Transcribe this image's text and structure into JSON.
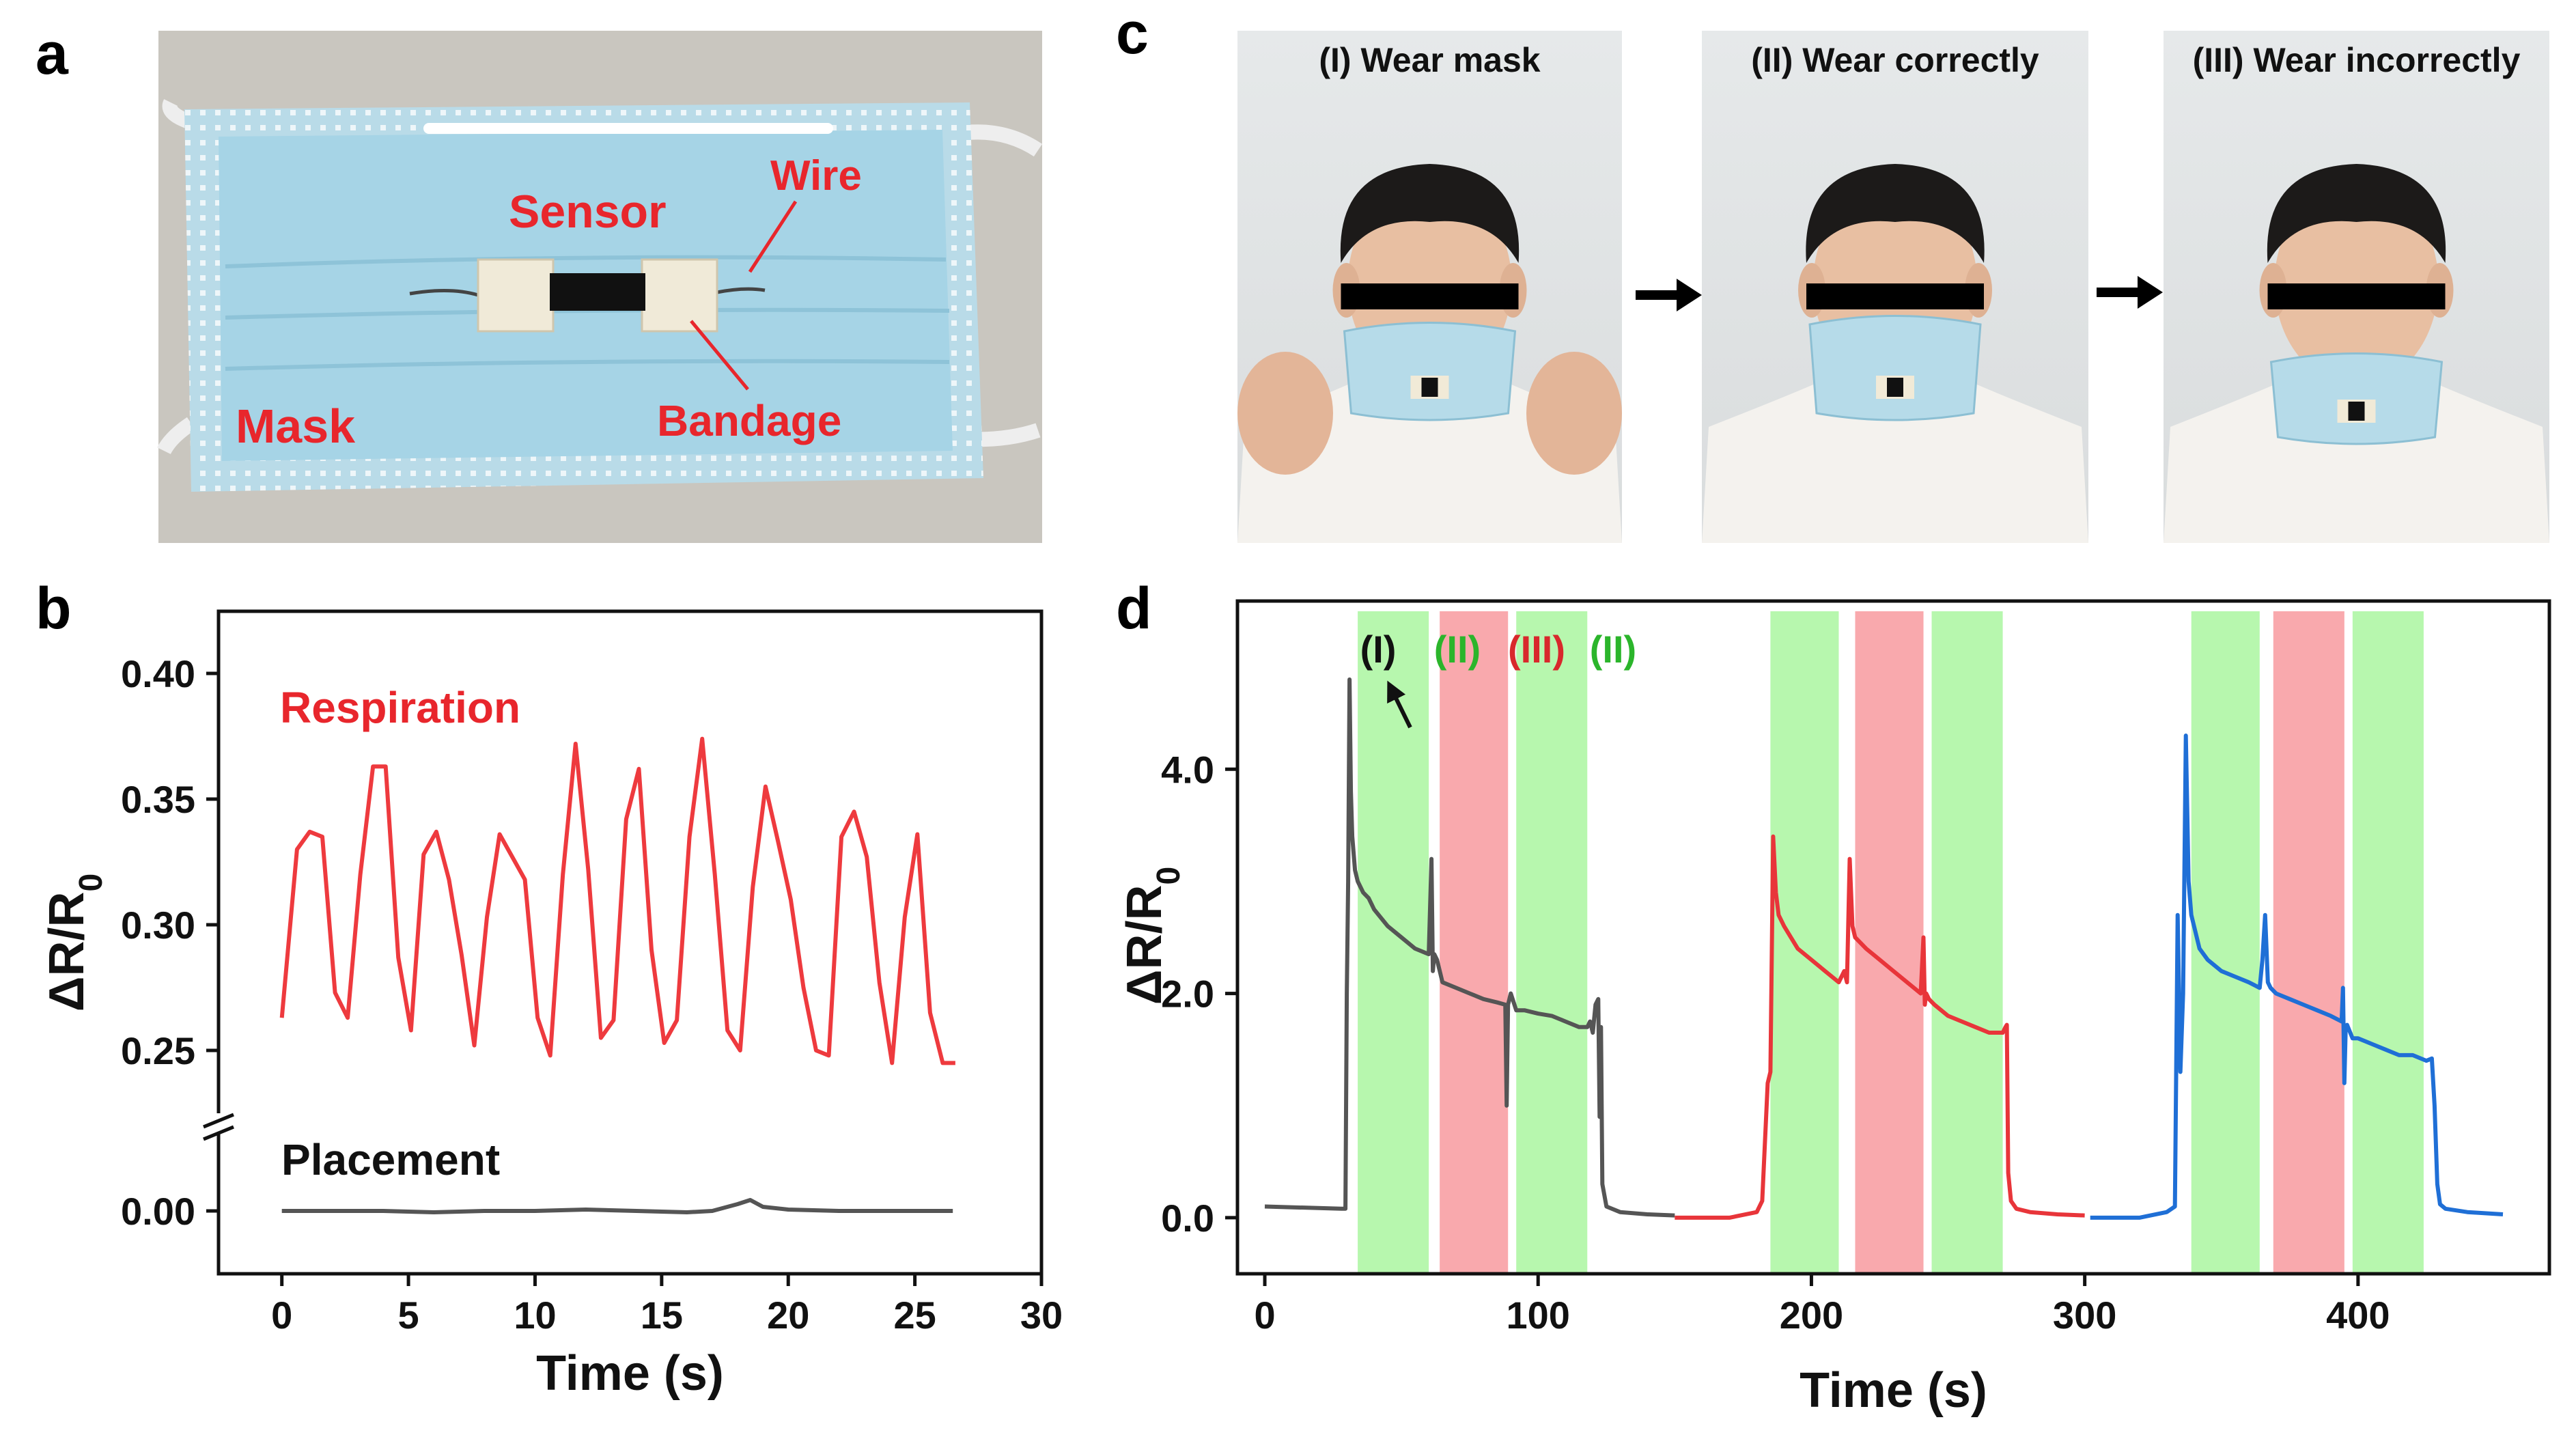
{
  "panels": {
    "a": {
      "letter": "a",
      "labels": {
        "sensor": "Sensor",
        "wire": "Wire",
        "mask": "Mask",
        "bandage": "Bandage"
      }
    },
    "c": {
      "letter": "c",
      "photos": [
        {
          "title": "(I) Wear mask"
        },
        {
          "title": "(II) Wear correctly"
        },
        {
          "title": "(III) Wear incorrectly"
        }
      ]
    }
  },
  "chart_data": [
    {
      "panel": "b",
      "type": "line",
      "xlabel": "Time (s)",
      "ylabel": "ΔR/R",
      "ylabel_subscript": "0",
      "xlim": [
        -2.5,
        30
      ],
      "xticks": [
        0,
        5,
        10,
        15,
        20,
        25,
        30
      ],
      "yticks_upper": [
        "0.40",
        "0.35",
        "0.30",
        "0.25"
      ],
      "ytick_lower": "0.00",
      "ylim_upper": [
        0.23,
        0.42
      ],
      "broken_axis": true,
      "series": [
        {
          "name": "Respiration",
          "color": "#ee3a3e",
          "x": [
            0,
            0.6,
            1.1,
            1.6,
            2.1,
            2.6,
            3.1,
            3.6,
            4.1,
            4.6,
            5.1,
            5.6,
            6.1,
            6.6,
            7.1,
            7.6,
            8.1,
            8.6,
            9.1,
            9.6,
            10.1,
            10.6,
            11.1,
            11.6,
            12.1,
            12.6,
            13.1,
            13.6,
            14.1,
            14.6,
            15.1,
            15.6,
            16.1,
            16.6,
            17.1,
            17.6,
            18.1,
            18.6,
            19.1,
            19.6,
            20.1,
            20.6,
            21.1,
            21.6,
            22.1,
            22.6,
            23.1,
            23.6,
            24.1,
            24.6,
            25.1,
            25.6,
            26.1,
            26.6
          ],
          "y": [
            0.263,
            0.33,
            0.337,
            0.335,
            0.273,
            0.263,
            0.32,
            0.363,
            0.363,
            0.287,
            0.258,
            0.328,
            0.337,
            0.318,
            0.288,
            0.252,
            0.303,
            0.336,
            0.327,
            0.318,
            0.263,
            0.248,
            0.32,
            0.372,
            0.322,
            0.255,
            0.262,
            0.342,
            0.362,
            0.29,
            0.253,
            0.262,
            0.335,
            0.374,
            0.32,
            0.258,
            0.25,
            0.315,
            0.355,
            0.333,
            0.31,
            0.275,
            0.25,
            0.248,
            0.335,
            0.345,
            0.327,
            0.277,
            0.245,
            0.303,
            0.336,
            0.265,
            0.245,
            0.245
          ]
        },
        {
          "name": "Placement",
          "color": "#555555",
          "x": [
            0,
            2,
            4,
            6,
            8,
            10,
            12,
            14,
            16,
            17,
            18,
            18.5,
            19,
            20,
            22,
            24,
            26,
            26.5
          ],
          "y": [
            0.0,
            0.0,
            0.0,
            -0.001,
            0.0,
            0.0,
            0.001,
            0.0,
            -0.001,
            0.0,
            0.005,
            0.008,
            0.003,
            0.001,
            0.0,
            0.0,
            0.0,
            0.0
          ]
        }
      ]
    },
    {
      "panel": "d",
      "type": "line",
      "xlabel": "Time (s)",
      "ylabel": "ΔR/R",
      "ylabel_subscript": "0",
      "xlim": [
        -10,
        470
      ],
      "ylim": [
        -0.5,
        5.5
      ],
      "xticks": [
        0,
        100,
        200,
        300,
        400
      ],
      "yticks": [
        "0.0",
        "2.0",
        "4.0"
      ],
      "yticks_values": [
        0,
        2,
        4
      ],
      "bands": [
        {
          "x0": 34,
          "x1": 60,
          "color": "#b7f7ae"
        },
        {
          "x0": 64,
          "x1": 89,
          "color": "#f9a9ad"
        },
        {
          "x0": 92,
          "x1": 118,
          "color": "#b7f7ae"
        },
        {
          "x0": 185,
          "x1": 210,
          "color": "#b7f7ae"
        },
        {
          "x0": 216,
          "x1": 241,
          "color": "#f9a9ad"
        },
        {
          "x0": 244,
          "x1": 270,
          "color": "#b7f7ae"
        },
        {
          "x0": 339,
          "x1": 364,
          "color": "#b7f7ae"
        },
        {
          "x0": 369,
          "x1": 395,
          "color": "#f9a9ad"
        },
        {
          "x0": 398,
          "x1": 424,
          "color": "#b7f7ae"
        }
      ],
      "annotations": [
        {
          "text": "(I)",
          "color": "#111111"
        },
        {
          "text": "(II)",
          "color": "#2bb52b"
        },
        {
          "text": "(III)",
          "color": "#d8282c"
        },
        {
          "text": "(II)",
          "color": "#2bb52b"
        }
      ],
      "series": [
        {
          "color": "#555555",
          "x": [
            0,
            28,
            29.5,
            30,
            30.5,
            31,
            31.5,
            32,
            33,
            34,
            36,
            38,
            40,
            45,
            50,
            55,
            60,
            61,
            61.5,
            62,
            63,
            65,
            70,
            75,
            80,
            85,
            88,
            88.5,
            89,
            90,
            92,
            95,
            100,
            105,
            110,
            115,
            118,
            119,
            120,
            121,
            122,
            122.5,
            123,
            123.5,
            125,
            130,
            140,
            150
          ],
          "y": [
            0.1,
            0.08,
            0.08,
            2.0,
            3.0,
            4.8,
            3.8,
            3.4,
            3.1,
            3.0,
            2.9,
            2.85,
            2.75,
            2.6,
            2.5,
            2.4,
            2.35,
            3.2,
            2.2,
            2.35,
            2.3,
            2.1,
            2.05,
            2.0,
            1.95,
            1.92,
            1.9,
            1.0,
            1.9,
            2.0,
            1.85,
            1.85,
            1.82,
            1.8,
            1.75,
            1.7,
            1.7,
            1.75,
            1.65,
            1.9,
            1.95,
            0.9,
            1.7,
            0.3,
            0.1,
            0.05,
            0.03,
            0.02
          ]
        },
        {
          "color": "#e8353a",
          "x": [
            150,
            170,
            180,
            182,
            184,
            185,
            186,
            187,
            188,
            190,
            195,
            200,
            205,
            210,
            211,
            212,
            213,
            214,
            215,
            216,
            220,
            225,
            230,
            235,
            240,
            241,
            241.5,
            242,
            243,
            245,
            250,
            255,
            260,
            265,
            270,
            271,
            271.5,
            272,
            273,
            275,
            280,
            290,
            300
          ],
          "y": [
            0.0,
            0.0,
            0.05,
            0.15,
            1.2,
            1.3,
            3.4,
            2.9,
            2.7,
            2.6,
            2.4,
            2.3,
            2.2,
            2.1,
            2.15,
            2.2,
            2.1,
            3.2,
            2.6,
            2.5,
            2.4,
            2.3,
            2.2,
            2.1,
            2.0,
            2.5,
            1.9,
            2.0,
            1.95,
            1.9,
            1.8,
            1.75,
            1.7,
            1.65,
            1.65,
            1.7,
            1.72,
            0.4,
            0.15,
            0.08,
            0.05,
            0.03,
            0.02
          ]
        },
        {
          "color": "#1f6fd6",
          "x": [
            302,
            320,
            330,
            333,
            334,
            335,
            336,
            337,
            338,
            339,
            340,
            342,
            345,
            350,
            355,
            360,
            364,
            365,
            366,
            367,
            368,
            370,
            375,
            380,
            385,
            390,
            394,
            394.5,
            395,
            395.5,
            396,
            398,
            400,
            405,
            410,
            415,
            420,
            425,
            427,
            428,
            429,
            430,
            432,
            440,
            453
          ],
          "y": [
            0.0,
            0.0,
            0.05,
            0.1,
            2.7,
            1.3,
            2.0,
            4.3,
            3.0,
            2.7,
            2.6,
            2.4,
            2.3,
            2.2,
            2.15,
            2.1,
            2.05,
            2.3,
            2.7,
            2.1,
            2.05,
            2.0,
            1.95,
            1.9,
            1.85,
            1.8,
            1.75,
            2.05,
            1.2,
            1.7,
            1.72,
            1.6,
            1.6,
            1.55,
            1.5,
            1.45,
            1.45,
            1.4,
            1.42,
            1.0,
            0.3,
            0.12,
            0.08,
            0.05,
            0.03
          ]
        }
      ]
    }
  ]
}
